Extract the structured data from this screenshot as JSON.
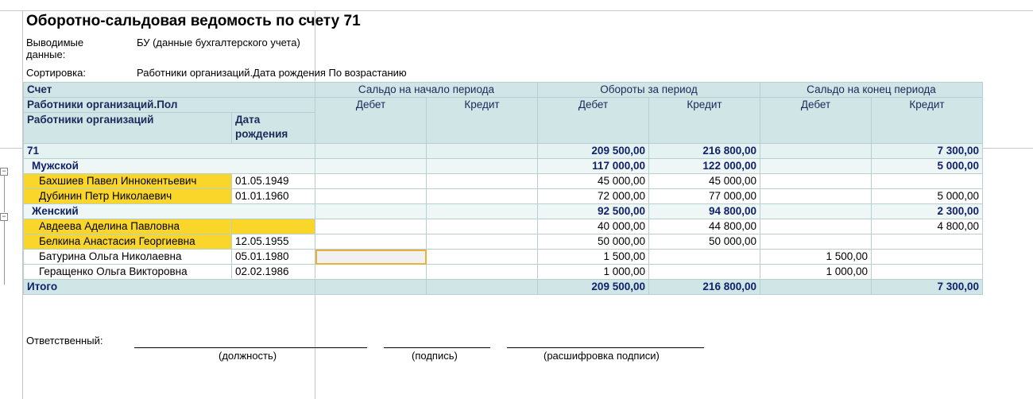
{
  "title": "Оборотно-сальдовая ведомость по счету 71",
  "params": {
    "output_label": "Выводимые данные:",
    "output_line1": "Выводимые",
    "output_line2": "данные:",
    "output_value": "БУ (данные бухгалтерского учета)",
    "sort_label": "Сортировка:",
    "sort_value": "Работники организаций.Дата рождения По возрастанию"
  },
  "header": {
    "account": "Счет",
    "gender": "Работники организаций.Пол",
    "employee": "Работники организаций",
    "birth_line1": "Дата",
    "birth_line2": "рождения",
    "start_balance": "Сальдо на начало периода",
    "turnover": "Обороты за период",
    "end_balance": "Сальдо на конец периода",
    "debit": "Дебет",
    "credit": "Кредит"
  },
  "account_row": {
    "name": "71",
    "turn_debit": "209 500,00",
    "turn_credit": "216 800,00",
    "end_credit": "7 300,00"
  },
  "groups": [
    {
      "name": "Мужской",
      "turn_debit": "117 000,00",
      "turn_credit": "122 000,00",
      "end_credit": "5 000,00",
      "rows": [
        {
          "name": "Бахшиев Павел Иннокентьевич",
          "birth": "01.05.1949",
          "turn_debit": "45 000,00",
          "turn_credit": "45 000,00",
          "end_debit": "",
          "end_credit": ""
        },
        {
          "name": "Дубинин Петр Николаевич",
          "birth": "01.01.1960",
          "turn_debit": "72 000,00",
          "turn_credit": "77 000,00",
          "end_debit": "",
          "end_credit": "5 000,00"
        }
      ]
    },
    {
      "name": "Женский",
      "turn_debit": "92 500,00",
      "turn_credit": "94 800,00",
      "end_credit": "2 300,00",
      "rows": [
        {
          "name": "Авдеева Аделина Павловна",
          "birth": "",
          "turn_debit": "40 000,00",
          "turn_credit": "44 800,00",
          "end_debit": "",
          "end_credit": "4 800,00"
        },
        {
          "name": "Белкина Анастасия Георгиевна",
          "birth": "12.05.1955",
          "turn_debit": "50 000,00",
          "turn_credit": "50 000,00",
          "end_debit": "",
          "end_credit": ""
        },
        {
          "name": "Батурина Ольга Николаевна",
          "birth": "05.01.1980",
          "turn_debit": "1 500,00",
          "turn_credit": "",
          "end_debit": "1 500,00",
          "end_credit": ""
        },
        {
          "name": "Геращенко Ольга Викторовна",
          "birth": "02.02.1986",
          "turn_debit": "1 000,00",
          "turn_credit": "",
          "end_debit": "1 000,00",
          "end_credit": ""
        }
      ]
    }
  ],
  "total": {
    "name": "Итого",
    "turn_debit": "209 500,00",
    "turn_credit": "216 800,00",
    "end_credit": "7 300,00"
  },
  "signature": {
    "label": "Ответственный:",
    "position": "(должность)",
    "sign": "(подпись)",
    "decode": "(расшифровка подписи)"
  },
  "colors": {
    "header_bg": "#cfe5e6",
    "highlight": "#fad52a",
    "selection": "#e8b23a"
  }
}
